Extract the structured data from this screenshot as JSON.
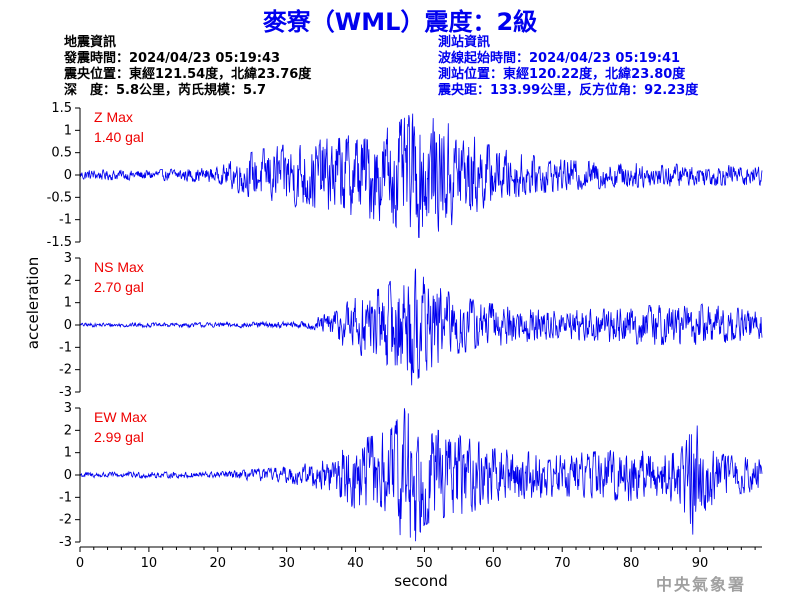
{
  "title": "麥寮（WML）震度：2級",
  "earthquake_info": {
    "heading": "地震資訊",
    "origin_time": "發震時間：2024/04/23 05:19:43",
    "epicenter": "震央位置：東經121.54度，北緯23.76度",
    "depth_magnitude": "深　度：5.8公里，芮氏規模：5.7"
  },
  "station_info": {
    "heading": "測站資訊",
    "onset_time": "波線起始時間：2024/04/23 05:19:41",
    "location": "測站位置：東經120.22度，北緯23.80度",
    "distance_azimuth": "震央距：133.99公里，反方位角：92.23度"
  },
  "agency": "中央氣象署",
  "colors": {
    "trace": "#0000ee",
    "max_label": "#ee0000",
    "title": "#0000ee",
    "axis": "#000000"
  },
  "chart_data": {
    "type": "line",
    "xlabel": "second",
    "ylabel": "acceleration",
    "xlim": [
      0,
      99
    ],
    "xticks": [
      0,
      10,
      20,
      30,
      40,
      50,
      60,
      70,
      80,
      90
    ],
    "grid": false,
    "panels": [
      {
        "component": "Z",
        "max_label": "Z Max",
        "max_value": "1.40 gal",
        "ylim": [
          -1.5,
          1.5
        ],
        "yticks": [
          1.5,
          1,
          0.5,
          0,
          -0.5,
          -1,
          -1.5
        ],
        "ytick_labels": [
          "1.5",
          "1",
          "0.5",
          "0",
          "-0.5",
          "-1",
          "-1.5"
        ],
        "peak": 1.4,
        "envelope": [
          [
            0,
            0.1
          ],
          [
            10,
            0.1
          ],
          [
            20,
            0.15
          ],
          [
            23,
            0.35
          ],
          [
            26,
            0.5
          ],
          [
            30,
            0.6
          ],
          [
            35,
            0.7
          ],
          [
            40,
            0.8
          ],
          [
            45,
            0.95
          ],
          [
            48,
            1.2
          ],
          [
            50,
            1.25
          ],
          [
            53,
            1.05
          ],
          [
            56,
            0.85
          ],
          [
            60,
            0.55
          ],
          [
            65,
            0.4
          ],
          [
            70,
            0.3
          ],
          [
            80,
            0.25
          ],
          [
            90,
            0.2
          ],
          [
            99,
            0.2
          ]
        ]
      },
      {
        "component": "NS",
        "max_label": "NS Max",
        "max_value": "2.70 gal",
        "ylim": [
          -3,
          3
        ],
        "yticks": [
          3,
          2,
          1,
          0,
          -1,
          -2,
          -3
        ],
        "ytick_labels": [
          "3",
          "2",
          "1",
          "0",
          "-1",
          "-2",
          "-3"
        ],
        "peak": 2.7,
        "envelope": [
          [
            0,
            0.08
          ],
          [
            20,
            0.1
          ],
          [
            33,
            0.15
          ],
          [
            36,
            0.5
          ],
          [
            40,
            1.2
          ],
          [
            44,
            1.6
          ],
          [
            47,
            2.3
          ],
          [
            48,
            2.6
          ],
          [
            50,
            2.0
          ],
          [
            52,
            1.6
          ],
          [
            55,
            1.2
          ],
          [
            60,
            0.9
          ],
          [
            70,
            0.6
          ],
          [
            80,
            0.8
          ],
          [
            90,
            0.9
          ],
          [
            99,
            0.6
          ]
        ]
      },
      {
        "component": "EW",
        "max_label": "EW Max",
        "max_value": "2.99 gal",
        "ylim": [
          -3,
          3
        ],
        "yticks": [
          3,
          2,
          1,
          0,
          -1,
          -2,
          -3
        ],
        "ytick_labels": [
          "3",
          "2",
          "1",
          "0",
          "-1",
          "-2",
          "-3"
        ],
        "peak": 2.99,
        "envelope": [
          [
            0,
            0.1
          ],
          [
            20,
            0.12
          ],
          [
            30,
            0.3
          ],
          [
            36,
            0.6
          ],
          [
            40,
            1.3
          ],
          [
            45,
            1.7
          ],
          [
            48,
            2.9
          ],
          [
            50,
            1.9
          ],
          [
            53,
            1.6
          ],
          [
            57,
            1.4
          ],
          [
            60,
            1.0
          ],
          [
            70,
            0.8
          ],
          [
            80,
            1.0
          ],
          [
            86,
            1.0
          ],
          [
            88,
            1.5
          ],
          [
            89,
            2.3
          ],
          [
            90,
            1.6
          ],
          [
            93,
            0.8
          ],
          [
            99,
            0.6
          ]
        ]
      }
    ]
  }
}
